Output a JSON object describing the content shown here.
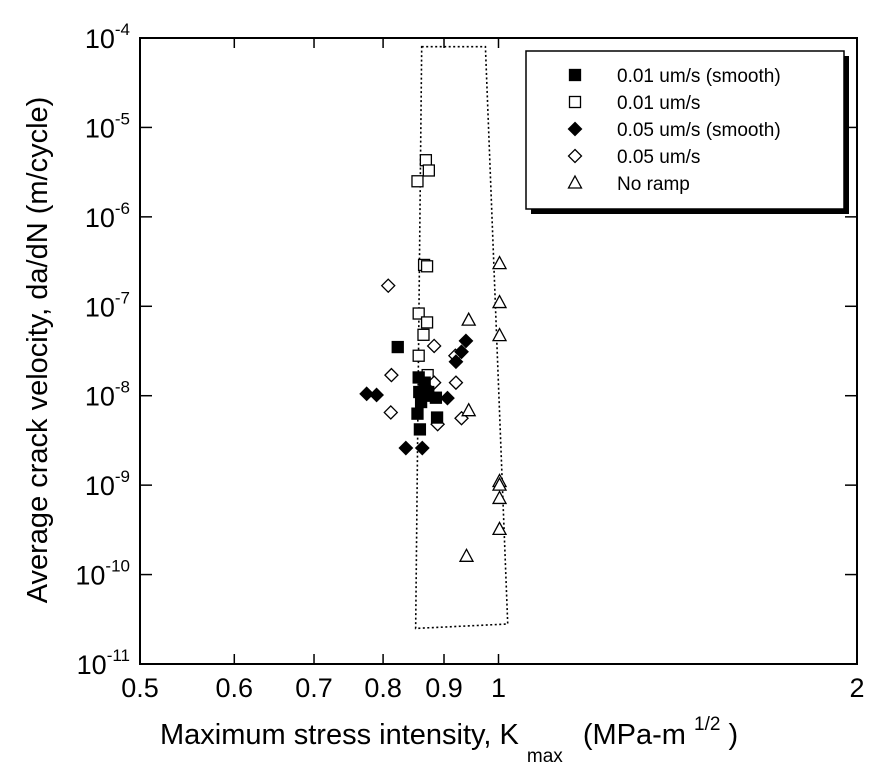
{
  "chart_data": {
    "type": "scatter",
    "title": "",
    "xlabel": {
      "main": "Maximum stress intensity, K",
      "sub": "max",
      "units_open": "(MPa-m",
      "sup": "1/2",
      "units_close": ")"
    },
    "ylabel": "Average crack velocity, da/dN (m/cycle)",
    "x_scale": "log",
    "y_scale": "log",
    "xlim": [
      0.5,
      2
    ],
    "ylim": [
      1e-11,
      0.0001
    ],
    "x_ticks": [
      {
        "value": 0.5,
        "label": "0.5"
      },
      {
        "value": 0.6,
        "label": "0.6"
      },
      {
        "value": 0.7,
        "label": "0.7"
      },
      {
        "value": 0.8,
        "label": "0.8"
      },
      {
        "value": 0.9,
        "label": "0.9"
      },
      {
        "value": 1,
        "label": "1"
      },
      {
        "value": 2,
        "label": "2"
      }
    ],
    "y_ticks": [
      {
        "value": 0.0001,
        "base": "10",
        "exp": "-4"
      },
      {
        "value": 1e-05,
        "base": "10",
        "exp": "-5"
      },
      {
        "value": 1e-06,
        "base": "10",
        "exp": "-6"
      },
      {
        "value": 1e-07,
        "base": "10",
        "exp": "-7"
      },
      {
        "value": 1e-08,
        "base": "10",
        "exp": "-8"
      },
      {
        "value": 1e-09,
        "base": "10",
        "exp": "-9"
      },
      {
        "value": 1e-10,
        "base": "10",
        "exp": "-10"
      },
      {
        "value": 1e-11,
        "base": "10",
        "exp": "-11"
      }
    ],
    "grid": false,
    "legend_position": "top-right",
    "annotation_box": {
      "style": "dotted",
      "corners": [
        [
          0.862,
          8e-05
        ],
        [
          0.975,
          8e-05
        ],
        [
          1.018,
          2.8e-11
        ],
        [
          0.852,
          2.5e-11
        ]
      ]
    },
    "series": [
      {
        "name": "0.01 um/s (smooth)",
        "marker": "square",
        "filled": true,
        "points": [
          [
            0.823,
            3.5e-08
          ],
          [
            0.857,
            1.6e-08
          ],
          [
            0.867,
            1.4e-08
          ],
          [
            0.858,
            1.1e-08
          ],
          [
            0.866,
            1e-08
          ],
          [
            0.873,
            1.1e-08
          ],
          [
            0.886,
            9.5e-09
          ],
          [
            0.861,
            8.5e-09
          ],
          [
            0.855,
            6.3e-09
          ],
          [
            0.888,
            5.7e-09
          ],
          [
            0.859,
            4.2e-09
          ]
        ]
      },
      {
        "name": "0.01 um/s",
        "marker": "square",
        "filled": false,
        "points": [
          [
            0.869,
            4.3e-06
          ],
          [
            0.874,
            3.3e-06
          ],
          [
            0.855,
            2.5e-06
          ],
          [
            0.866,
            2.9e-07
          ],
          [
            0.871,
            2.8e-07
          ],
          [
            0.857,
            8.3e-08
          ],
          [
            0.871,
            6.6e-08
          ],
          [
            0.865,
            4.8e-08
          ],
          [
            0.857,
            2.8e-08
          ],
          [
            0.872,
            1.7e-08
          ]
        ]
      },
      {
        "name": "0.05 um/s (smooth)",
        "marker": "diamond",
        "filled": true,
        "points": [
          [
            0.775,
            1.05e-08
          ],
          [
            0.79,
            1.02e-08
          ],
          [
            0.939,
            4.1e-08
          ],
          [
            0.931,
            3.1e-08
          ],
          [
            0.921,
            2.4e-08
          ],
          [
            0.906,
            9.4e-09
          ],
          [
            0.836,
            2.6e-09
          ],
          [
            0.863,
            2.6e-09
          ]
        ]
      },
      {
        "name": "0.05 um/s",
        "marker": "diamond",
        "filled": false,
        "points": [
          [
            0.808,
            1.7e-07
          ],
          [
            0.813,
            1.7e-08
          ],
          [
            0.883,
            3.6e-08
          ],
          [
            0.92,
            2.8e-08
          ],
          [
            0.883,
            1.4e-08
          ],
          [
            0.921,
            1.4e-08
          ],
          [
            0.812,
            6.5e-09
          ],
          [
            0.931,
            5.6e-09
          ],
          [
            0.889,
            4.8e-09
          ]
        ]
      },
      {
        "name": "No ramp",
        "marker": "triangle",
        "filled": false,
        "points": [
          [
            1.002,
            3e-07
          ],
          [
            1.002,
            1.1e-07
          ],
          [
            0.944,
            7e-08
          ],
          [
            1.002,
            4.7e-08
          ],
          [
            0.944,
            6.8e-09
          ],
          [
            1.002,
            1.1e-09
          ],
          [
            1.002,
            1e-09
          ],
          [
            1.002,
            7.1e-10
          ],
          [
            1.002,
            3.2e-10
          ],
          [
            0.94,
            1.6e-10
          ]
        ]
      }
    ]
  }
}
